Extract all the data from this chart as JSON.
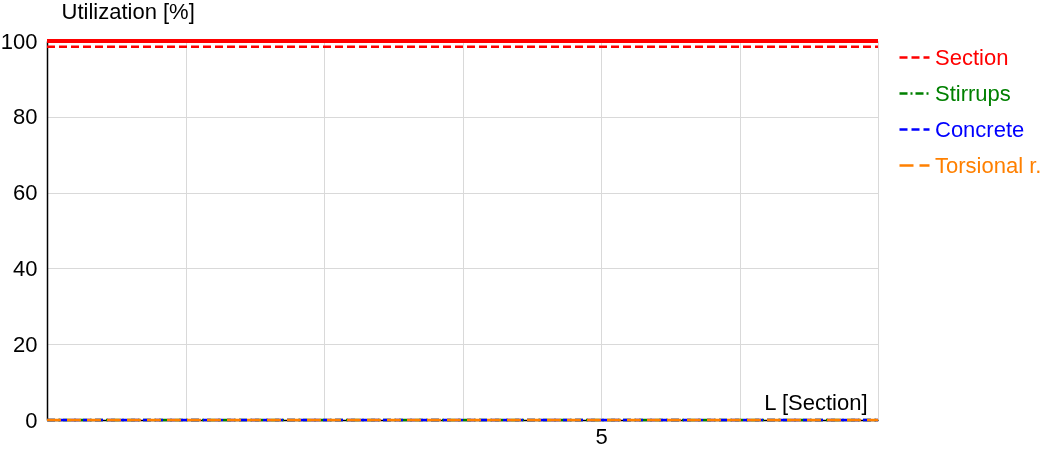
{
  "chart_data": {
    "type": "line",
    "xlabel": "L [Section]",
    "ylabel": "Utilization [%]",
    "categories": [
      null,
      null,
      null,
      null,
      "5",
      null,
      null
    ],
    "ylim": [
      0,
      100
    ],
    "yticks": [
      0,
      20,
      40,
      60,
      80,
      100
    ],
    "grid": true,
    "legend": "right",
    "ref_lines": [
      {
        "axis": "y",
        "value": 100,
        "color": "#ff0000"
      }
    ],
    "series": [
      {
        "name": "Section",
        "color": "#ff0000",
        "line_style": "dashed",
        "values": [
          98.5,
          98.5,
          98.5,
          98.5,
          98.5,
          98.5,
          98.5
        ]
      },
      {
        "name": "Stirrups",
        "color": "#008000",
        "line_style": "dashdot",
        "values": [
          0,
          0,
          0,
          0,
          0,
          0,
          0
        ]
      },
      {
        "name": "Concrete",
        "color": "#0000ff",
        "line_style": "dashed",
        "values": [
          0,
          0,
          0,
          0,
          0,
          0,
          0
        ]
      },
      {
        "name": "Torsional r.",
        "color": "#ff8000",
        "line_style": "longdash",
        "values": [
          0,
          0,
          0,
          0,
          0,
          0,
          0
        ]
      }
    ]
  }
}
